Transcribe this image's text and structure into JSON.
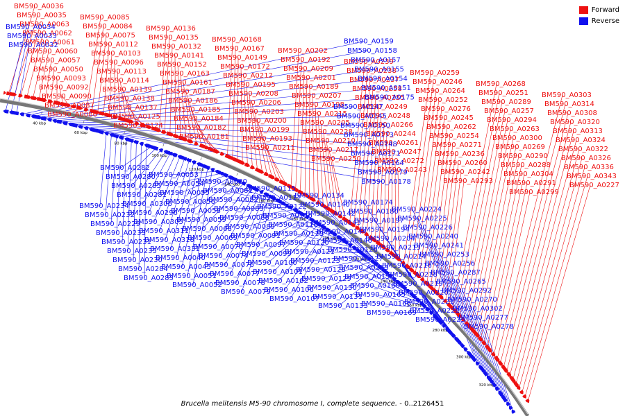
{
  "legend": {
    "forward_label": "Forward",
    "reverse_label": "Reverse",
    "forward_color": "#ee1111",
    "reverse_color": "#1111ee"
  },
  "caption": {
    "organism": "Brucella melitensis M5-90 chromosome I, complete sequence.",
    "range": " - 0..2126451"
  },
  "map": {
    "backbone_color": "#777777",
    "tick_labels": [
      "40 kbp",
      "60 kbp",
      "80 kbp",
      "100 kbp",
      "120 kbp",
      "140 kbp",
      "160 kbp",
      "180 kbp",
      "200 kbp",
      "220 kbp",
      "240 kbp",
      "260 kbp",
      "280 kbp",
      "300 kbp",
      "320 kbp"
    ]
  },
  "features": {
    "forward": [
      "BM590_A0036",
      "BM590_A0035",
      "BM590_A0063",
      "BM590_A0062",
      "BM590_A0061",
      "BM590_A0060",
      "BM590_A0057",
      "BM590_A0050",
      "BM590_A0093",
      "BM590_A0092",
      "BM590_A0090",
      "BM590_A0087",
      "BM590_A0086",
      "BM590_A0085",
      "BM590_A0084",
      "BM590_A0075",
      "BM590_A0112",
      "BM590_A0103",
      "BM590_A0096",
      "BM590_A0113",
      "BM590_A0114",
      "BM590_A0139",
      "BM590_A0138",
      "BM590_A0137",
      "BM590_A0125",
      "BM590_A0124",
      "BM590_A0136",
      "BM590_A0135",
      "BM590_A0132",
      "BM590_A0141",
      "BM590_A0152",
      "BM590_A0163",
      "BM590_A0161",
      "BM590_A0187",
      "BM590_A0186",
      "BM590_A0185",
      "BM590_A0184",
      "BM590_A0182",
      "BM590_A0181",
      "BM590_A0168",
      "BM590_A0167",
      "BM590_A0149",
      "BM590_A0172",
      "BM590_A0212",
      "BM590_A0195",
      "BM590_A0208",
      "BM590_A0206",
      "BM590_A0203",
      "BM590_A0200",
      "BM590_A0199",
      "BM590_A0193",
      "BM590_A0211",
      "BM590_A0202",
      "BM590_A0192",
      "BM590_A0209",
      "BM590_A0201",
      "BM590_A0189",
      "BM590_A0207",
      "BM590_A0198",
      "BM590_A0215",
      "BM590_A0205",
      "BM590_A0228",
      "BM590_A0210",
      "BM590_A0217",
      "BM590_A0250",
      "BM590_A0239",
      "BM590_A0238",
      "BM590_A0237",
      "BM590_A0258",
      "BM590_A0255",
      "BM590_A0249",
      "BM590_A0248",
      "BM590_A0266",
      "BM590_A0244",
      "BM590_A0261",
      "BM590_A0247",
      "BM590_A0272",
      "BM590_A0243",
      "BM590_A0259",
      "BM590_A0246",
      "BM590_A0264",
      "BM590_A0252",
      "BM590_A0276",
      "BM590_A0245",
      "BM590_A0262",
      "BM590_A0254",
      "BM590_A0271",
      "BM590_A0236",
      "BM590_A0260",
      "BM590_A0242",
      "BM590_A0293",
      "BM590_A0268",
      "BM590_A0251",
      "BM590_A0289",
      "BM590_A0257",
      "BM590_A0294",
      "BM590_A0263",
      "BM590_A0300",
      "BM590_A0269",
      "BM590_A0290",
      "BM590_A0288",
      "BM590_A0304",
      "BM590_A0291",
      "BM590_A0299",
      "BM590_A0303",
      "BM590_A0314",
      "BM590_A0308",
      "BM590_A0320",
      "BM590_A0313",
      "BM590_A0324",
      "BM590_A0322",
      "BM590_A0326",
      "BM590_A0336",
      "BM590_A0343",
      "BM590_A0227"
    ],
    "reverse": [
      "BM590_A0034",
      "BM590_A0033",
      "BM590_A0032",
      "BM590_A0159",
      "BM590_A0158",
      "BM590_A0157",
      "BM590_A0155",
      "BM590_A0154",
      "BM590_A0151",
      "BM590_A0175",
      "BM590_A0147",
      "BM590_A0145",
      "BM590_A0150",
      "BM590_A0173",
      "BM590_A0148",
      "BM590_A0171",
      "BM590_A0164",
      "BM590_A0179",
      "BM590_A0178",
      "BM590_A0234",
      "BM590_A0232",
      "BM590_A0229",
      "BM590_A0233",
      "BM590_A0231",
      "BM590_A0235",
      "BM590_A0230",
      "BM590_A0284",
      "BM590_A0283",
      "BM590_A0282",
      "BM590_A0280",
      "BM590_A0285",
      "BM590_A0281",
      "BM590_A0306",
      "BM590_A0296",
      "BM590_A0305",
      "BM590_A0311",
      "BM590_A0318",
      "BM590_A0331",
      "BM590_A0040",
      "BM590_A0045",
      "BM590_A0051",
      "BM590_A0052",
      "BM590_A0053",
      "BM590_A0054",
      "BM590_A0055",
      "BM590_A0056",
      "BM590_A0058",
      "BM590_A0059",
      "BM590_A0068",
      "BM590_A0069",
      "BM590_A0070",
      "BM590_A0074",
      "BM590_A0076",
      "BM590_A0077",
      "BM590_A0078",
      "BM590_A0079",
      "BM590_A0080",
      "BM590_A0081",
      "BM590_A0082",
      "BM590_A0083",
      "BM590_A0088",
      "BM590_A0089",
      "BM590_A0091",
      "BM590_A0097",
      "BM590_A0099",
      "BM590_A0100",
      "BM590_A0101",
      "BM590_A0102",
      "BM590_A0106",
      "BM590_A0107",
      "BM590_A0115",
      "BM590_A0117",
      "BM590_A0122",
      "BM590_A0116",
      "BM590_A0118",
      "BM590_A0119",
      "BM590_A0120",
      "BM590_A0121",
      "BM590_A0123",
      "BM590_A0128",
      "BM590_A0129",
      "BM590_A0130",
      "BM590_A0131",
      "BM590_A0133",
      "BM590_A0134",
      "BM590_A0140",
      "BM590_A0142",
      "BM590_A0143",
      "BM590_A0144",
      "BM590_A0146",
      "BM590_A0126",
      "BM590_A0127",
      "BM590_A0153",
      "BM590_A0156",
      "BM590_A0160",
      "BM590_A0165",
      "BM590_A0166",
      "BM590_A0169",
      "BM590_A0174",
      "BM590_A0180",
      "BM590_A0197",
      "BM590_A0194",
      "BM590_A0204",
      "BM590_A0213",
      "BM590_A0214",
      "BM590_A0216",
      "BM590_A0218",
      "BM590_A0219",
      "BM590_A0220",
      "BM590_A0221",
      "BM590_A0222",
      "BM590_A0223",
      "BM590_A0224",
      "BM590_A0225",
      "BM590_A0226",
      "BM590_A0240",
      "BM590_A0241",
      "BM590_A0253",
      "BM590_A0256",
      "BM590_A0287",
      "BM590_A0265",
      "BM590_A0292",
      "BM590_A0270",
      "BM590_A0302",
      "BM590_A0277",
      "BM590_A0278"
    ]
  }
}
